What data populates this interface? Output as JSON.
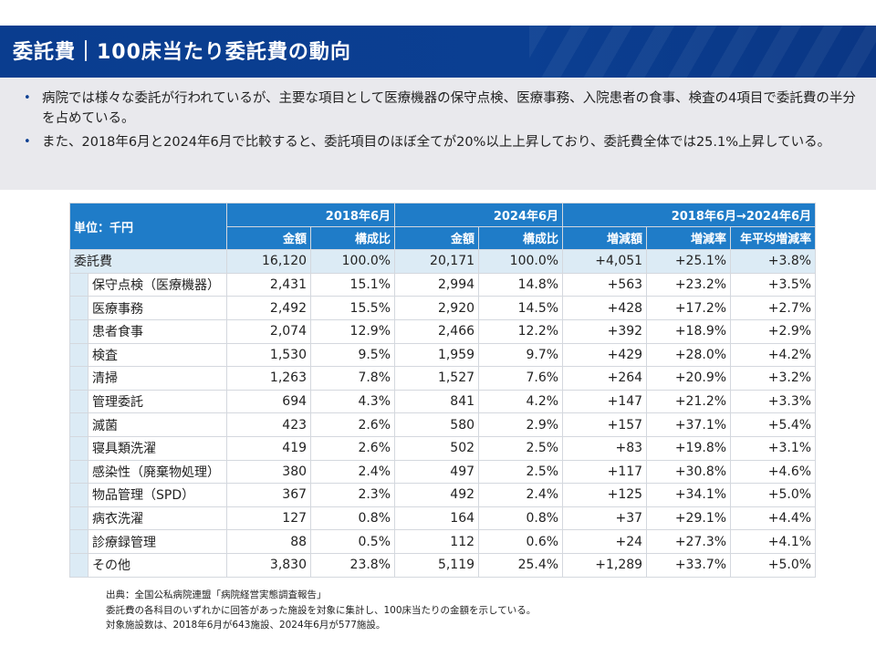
{
  "title": "委託費｜100床当たり委託費の動向",
  "bullets": [
    "病院では様々な委託が行われているが、主要な項目として医療機器の保守点検、医療事務、入院患者の食事、検査の4項目で委託費の半分を占めている。",
    "また、2018年6月と2024年6月で比較すると、委託項目のほぼ全てが20%以上上昇しており、委託費全体では25.1%上昇している。"
  ],
  "table": {
    "unit_label": "単位：千円",
    "group_headers": [
      "2018年6月",
      "2024年6月",
      "2018年6月→2024年6月"
    ],
    "sub_headers": [
      "金額",
      "構成比",
      "金額",
      "構成比",
      "増減額",
      "増減率",
      "年平均増減率"
    ],
    "total_row": {
      "label": "委託費",
      "cells": [
        "16,120",
        "100.0%",
        "20,171",
        "100.0%",
        "+4,051",
        "+25.1%",
        "+3.8%"
      ]
    },
    "rows": [
      {
        "label": "保守点検（医療機器）",
        "cells": [
          "2,431",
          "15.1%",
          "2,994",
          "14.8%",
          "+563",
          "+23.2%",
          "+3.5%"
        ]
      },
      {
        "label": "医療事務",
        "cells": [
          "2,492",
          "15.5%",
          "2,920",
          "14.5%",
          "+428",
          "+17.2%",
          "+2.7%"
        ]
      },
      {
        "label": "患者食事",
        "cells": [
          "2,074",
          "12.9%",
          "2,466",
          "12.2%",
          "+392",
          "+18.9%",
          "+2.9%"
        ]
      },
      {
        "label": "検査",
        "cells": [
          "1,530",
          "9.5%",
          "1,959",
          "9.7%",
          "+429",
          "+28.0%",
          "+4.2%"
        ]
      },
      {
        "label": "清掃",
        "cells": [
          "1,263",
          "7.8%",
          "1,527",
          "7.6%",
          "+264",
          "+20.9%",
          "+3.2%"
        ]
      },
      {
        "label": "管理委託",
        "cells": [
          "694",
          "4.3%",
          "841",
          "4.2%",
          "+147",
          "+21.2%",
          "+3.3%"
        ]
      },
      {
        "label": "滅菌",
        "cells": [
          "423",
          "2.6%",
          "580",
          "2.9%",
          "+157",
          "+37.1%",
          "+5.4%"
        ]
      },
      {
        "label": "寝具類洗濯",
        "cells": [
          "419",
          "2.6%",
          "502",
          "2.5%",
          "+83",
          "+19.8%",
          "+3.1%"
        ]
      },
      {
        "label": "感染性（廃棄物処理）",
        "cells": [
          "380",
          "2.4%",
          "497",
          "2.5%",
          "+117",
          "+30.8%",
          "+4.6%"
        ]
      },
      {
        "label": "物品管理（SPD）",
        "cells": [
          "367",
          "2.3%",
          "492",
          "2.4%",
          "+125",
          "+34.1%",
          "+5.0%"
        ]
      },
      {
        "label": "病衣洗濯",
        "cells": [
          "127",
          "0.8%",
          "164",
          "0.8%",
          "+37",
          "+29.1%",
          "+4.4%"
        ]
      },
      {
        "label": "診療録管理",
        "cells": [
          "88",
          "0.5%",
          "112",
          "0.6%",
          "+24",
          "+27.3%",
          "+4.1%"
        ]
      },
      {
        "label": "その他",
        "cells": [
          "3,830",
          "23.8%",
          "5,119",
          "25.4%",
          "+1,289",
          "+33.7%",
          "+5.0%"
        ]
      }
    ]
  },
  "notes": [
    "出典：全国公私病院連盟「病院経営実態調査報告」",
    "委託費の各科目のいずれかに回答があった施設を対象に集計し、100床当たりの金額を示している。",
    "対象施設数は、2018年6月が643施設、2024年6月が577施設。"
  ],
  "colors": {
    "header_bg": "#0b3f92",
    "table_header": "#1f7cc8",
    "total_row": "#dcebf5",
    "summary_bg": "#e9e9ed"
  }
}
